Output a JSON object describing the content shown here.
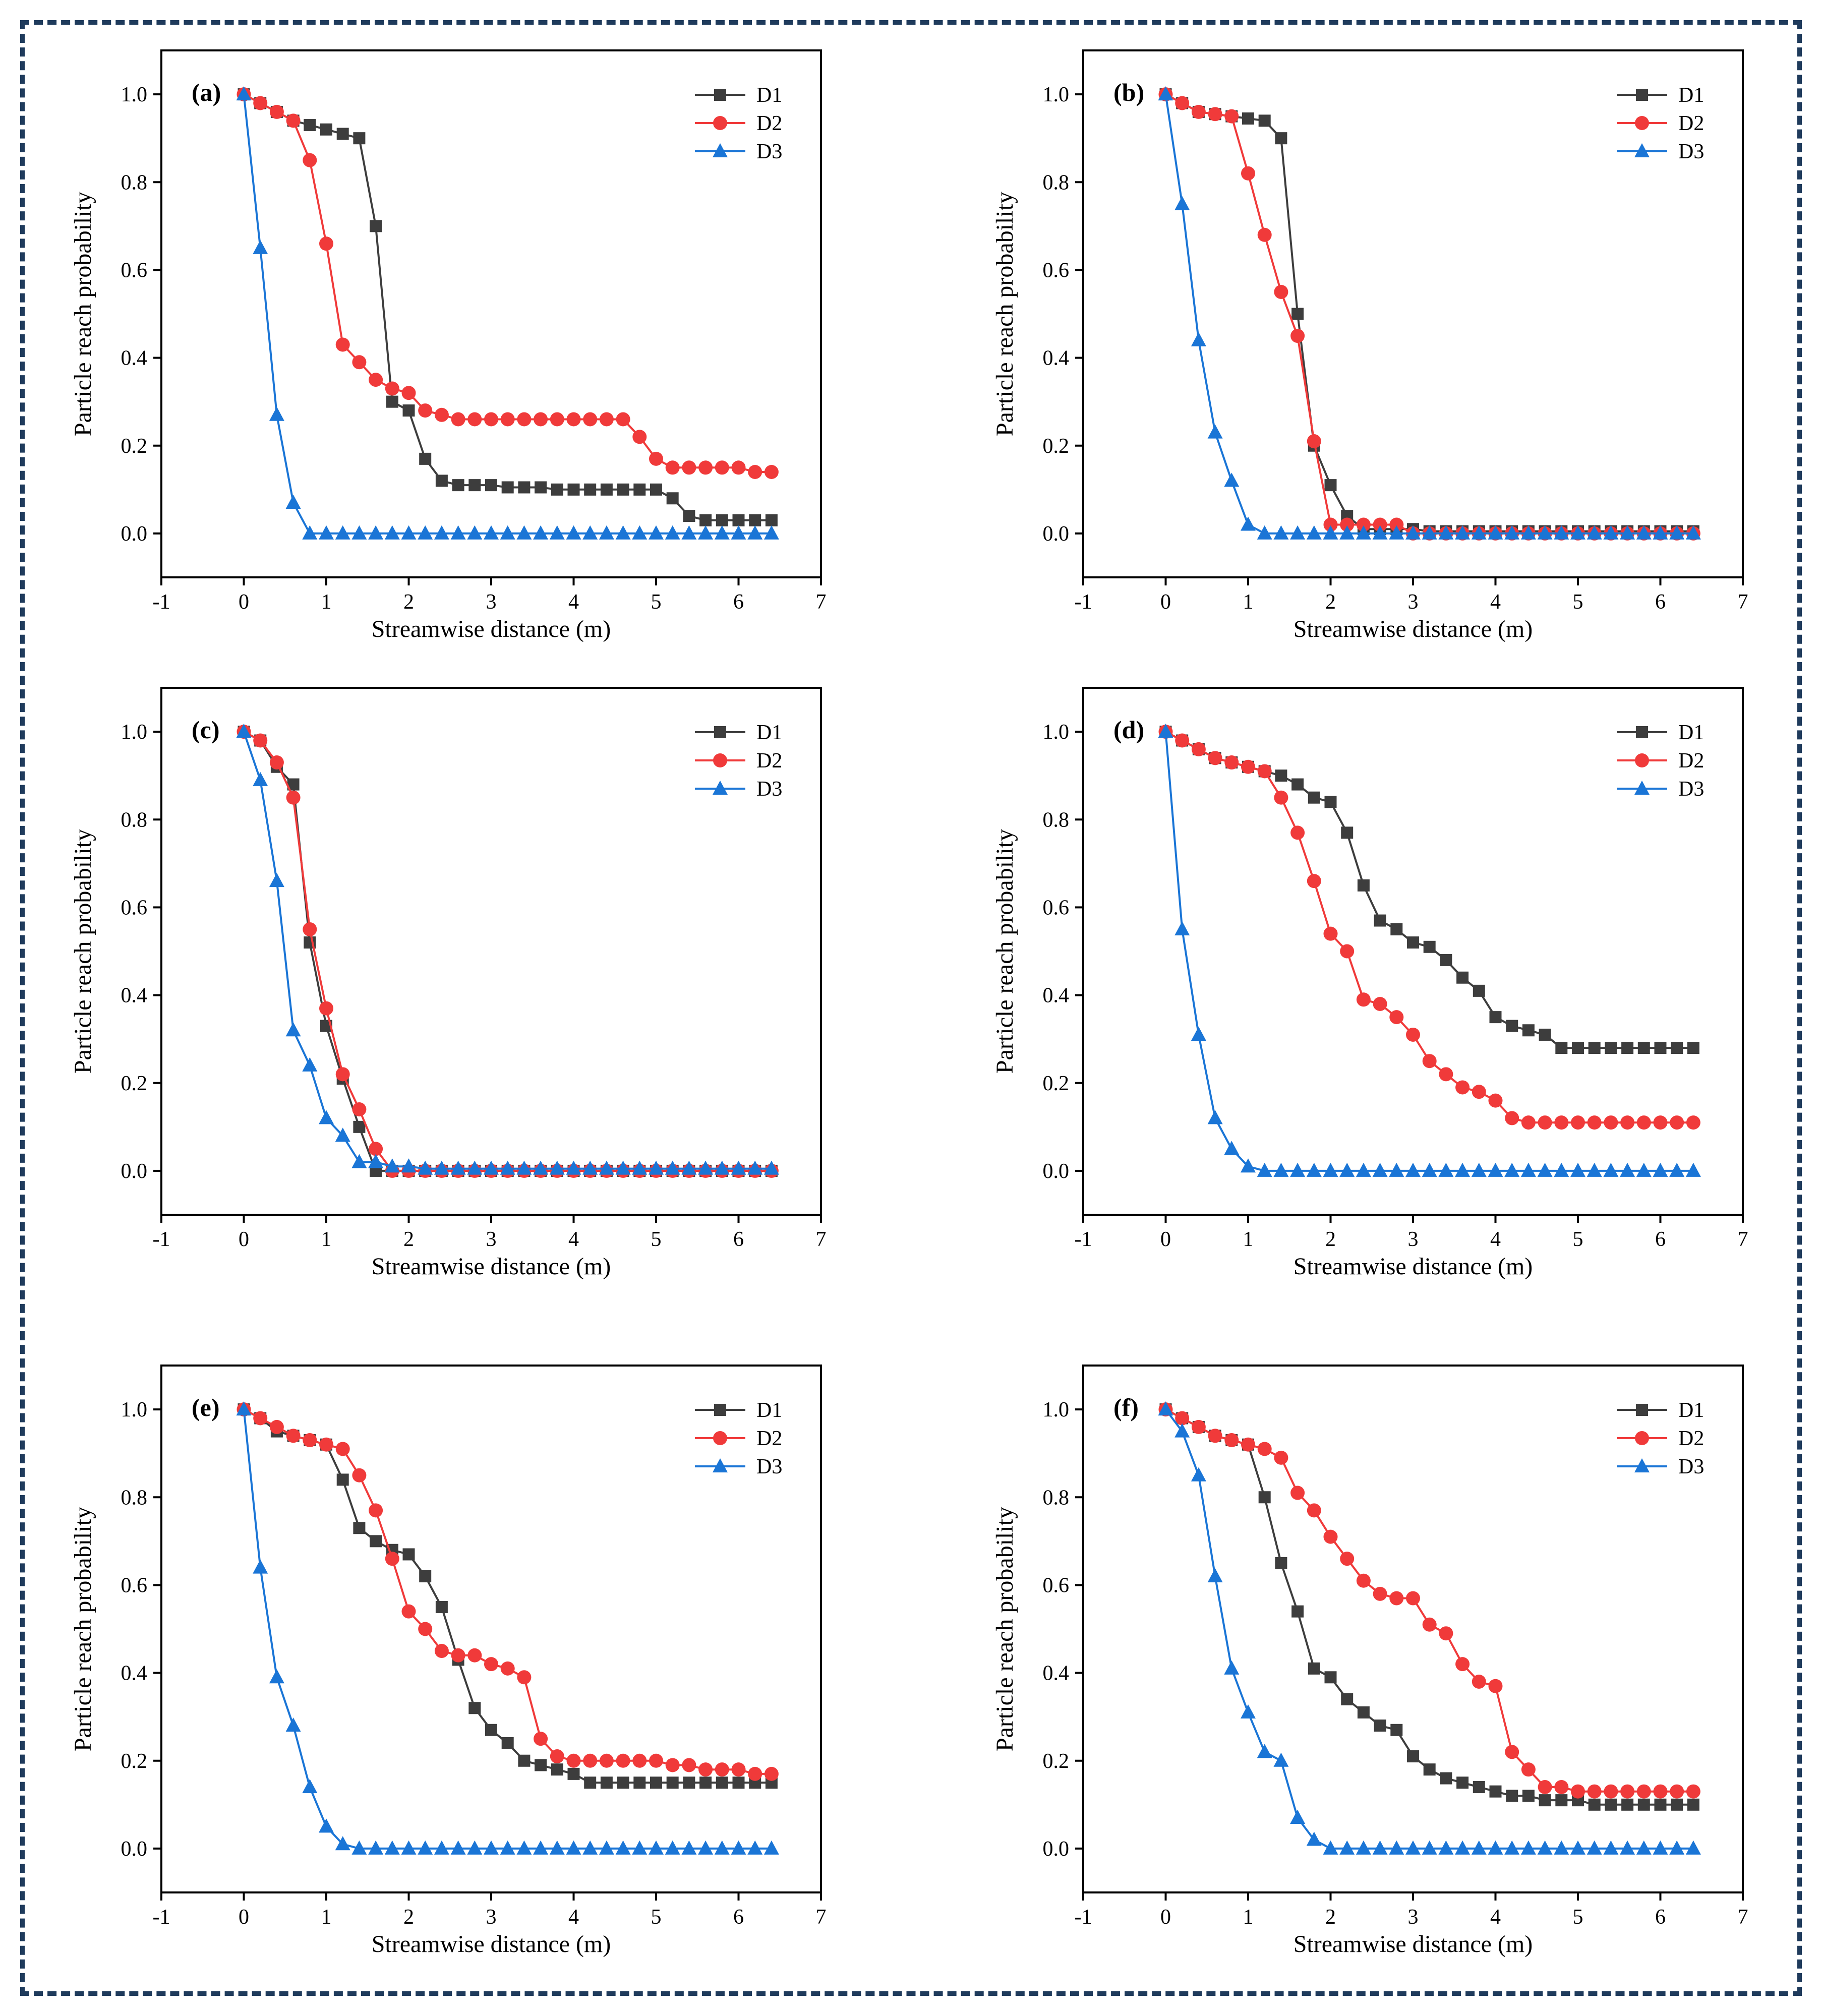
{
  "chart_data": [
    {
      "type": "line",
      "panel_label": "(a)",
      "xlabel": "Streamwise distance (m)",
      "ylabel": "Particle reach probability",
      "xlim": [
        -1,
        7
      ],
      "ylim": [
        -0.1,
        1.1
      ],
      "xticks": [
        "-1",
        "0",
        "1",
        "2",
        "3",
        "4",
        "5",
        "6",
        "7"
      ],
      "yticks": [
        "0.0",
        "0.2",
        "0.4",
        "0.6",
        "0.8",
        "1.0"
      ],
      "legend": "top-right",
      "x": [
        0,
        0.2,
        0.4,
        0.6,
        0.8,
        1.0,
        1.2,
        1.4,
        1.6,
        1.8,
        2.0,
        2.2,
        2.4,
        2.6,
        2.8,
        3.0,
        3.2,
        3.4,
        3.6,
        3.8,
        4.0,
        4.2,
        4.4,
        4.6,
        4.8,
        5.0,
        5.2,
        5.4,
        5.6,
        5.8,
        6.0,
        6.2,
        6.4
      ],
      "series": [
        {
          "name": "D1",
          "color": "#3d3d3d",
          "marker": "square",
          "values": [
            1.0,
            0.98,
            0.96,
            0.94,
            0.93,
            0.92,
            0.91,
            0.9,
            0.7,
            0.3,
            0.28,
            0.17,
            0.12,
            0.11,
            0.11,
            0.11,
            0.105,
            0.105,
            0.105,
            0.1,
            0.1,
            0.1,
            0.1,
            0.1,
            0.1,
            0.1,
            0.08,
            0.04,
            0.03,
            0.03,
            0.03,
            0.03,
            0.03
          ]
        },
        {
          "name": "D2",
          "color": "#f03a3a",
          "marker": "circle",
          "values": [
            1.0,
            0.98,
            0.96,
            0.94,
            0.85,
            0.66,
            0.43,
            0.39,
            0.35,
            0.33,
            0.32,
            0.28,
            0.27,
            0.26,
            0.26,
            0.26,
            0.26,
            0.26,
            0.26,
            0.26,
            0.26,
            0.26,
            0.26,
            0.26,
            0.22,
            0.17,
            0.15,
            0.15,
            0.15,
            0.15,
            0.15,
            0.14,
            0.14
          ]
        },
        {
          "name": "D3",
          "color": "#1a75d6",
          "marker": "triangle",
          "values": [
            1.0,
            0.65,
            0.27,
            0.07,
            0.0,
            0.0,
            0.0,
            0.0,
            0.0,
            0.0,
            0.0,
            0.0,
            0.0,
            0.0,
            0.0,
            0.0,
            0.0,
            0.0,
            0.0,
            0.0,
            0.0,
            0.0,
            0.0,
            0.0,
            0.0,
            0.0,
            0.0,
            0.0,
            0.0,
            0.0,
            0.0,
            0.0,
            0.0
          ]
        }
      ]
    },
    {
      "type": "line",
      "panel_label": "(b)",
      "xlabel": "Streamwise distance (m)",
      "ylabel": "Particle reach probability",
      "xlim": [
        -1,
        7
      ],
      "ylim": [
        -0.1,
        1.1
      ],
      "xticks": [
        "-1",
        "0",
        "1",
        "2",
        "3",
        "4",
        "5",
        "6",
        "7"
      ],
      "yticks": [
        "0.0",
        "0.2",
        "0.4",
        "0.6",
        "0.8",
        "1.0"
      ],
      "legend": "top-right",
      "x": [
        0,
        0.2,
        0.4,
        0.6,
        0.8,
        1.0,
        1.2,
        1.4,
        1.6,
        1.8,
        2.0,
        2.2,
        2.4,
        2.6,
        2.8,
        3.0,
        3.2,
        3.4,
        3.6,
        3.8,
        4.0,
        4.2,
        4.4,
        4.6,
        4.8,
        5.0,
        5.2,
        5.4,
        5.6,
        5.8,
        6.0,
        6.2,
        6.4
      ],
      "series": [
        {
          "name": "D1",
          "color": "#3d3d3d",
          "marker": "square",
          "values": [
            1.0,
            0.98,
            0.96,
            0.955,
            0.95,
            0.945,
            0.94,
            0.9,
            0.5,
            0.2,
            0.11,
            0.04,
            0.01,
            0.01,
            0.01,
            0.01,
            0.005,
            0.005,
            0.005,
            0.005,
            0.005,
            0.005,
            0.005,
            0.005,
            0.005,
            0.005,
            0.005,
            0.005,
            0.005,
            0.005,
            0.005,
            0.005,
            0.005
          ]
        },
        {
          "name": "D2",
          "color": "#f03a3a",
          "marker": "circle",
          "values": [
            1.0,
            0.98,
            0.96,
            0.955,
            0.95,
            0.82,
            0.68,
            0.55,
            0.45,
            0.21,
            0.02,
            0.02,
            0.02,
            0.02,
            0.02,
            0.0,
            0.0,
            0.0,
            0.0,
            0.0,
            0.0,
            0.0,
            0.0,
            0.0,
            0.0,
            0.0,
            0.0,
            0.0,
            0.0,
            0.0,
            0.0,
            0.0,
            0.0
          ]
        },
        {
          "name": "D3",
          "color": "#1a75d6",
          "marker": "triangle",
          "values": [
            1.0,
            0.75,
            0.44,
            0.23,
            0.12,
            0.02,
            0.0,
            0.0,
            0.0,
            0.0,
            0.0,
            0.0,
            0.0,
            0.0,
            0.0,
            0.0,
            0.0,
            0.0,
            0.0,
            0.0,
            0.0,
            0.0,
            0.0,
            0.0,
            0.0,
            0.0,
            0.0,
            0.0,
            0.0,
            0.0,
            0.0,
            0.0,
            0.0
          ]
        }
      ]
    },
    {
      "type": "line",
      "panel_label": "(c)",
      "xlabel": "Streamwise distance (m)",
      "ylabel": "Particle reach probability",
      "xlim": [
        -1,
        7
      ],
      "ylim": [
        -0.1,
        1.1
      ],
      "xticks": [
        "-1",
        "0",
        "1",
        "2",
        "3",
        "4",
        "5",
        "6",
        "7"
      ],
      "yticks": [
        "0.0",
        "0.2",
        "0.4",
        "0.6",
        "0.8",
        "1.0"
      ],
      "legend": "top-right",
      "x": [
        0,
        0.2,
        0.4,
        0.6,
        0.8,
        1.0,
        1.2,
        1.4,
        1.6,
        1.8,
        2.0,
        2.2,
        2.4,
        2.6,
        2.8,
        3.0,
        3.2,
        3.4,
        3.6,
        3.8,
        4.0,
        4.2,
        4.4,
        4.6,
        4.8,
        5.0,
        5.2,
        5.4,
        5.6,
        5.8,
        6.0,
        6.2,
        6.4
      ],
      "series": [
        {
          "name": "D1",
          "color": "#3d3d3d",
          "marker": "square",
          "values": [
            1.0,
            0.98,
            0.92,
            0.88,
            0.52,
            0.33,
            0.21,
            0.1,
            0.0,
            0.0,
            0.0,
            0.0,
            0.0,
            0.0,
            0.0,
            0.0,
            0.0,
            0.0,
            0.0,
            0.0,
            0.0,
            0.0,
            0.0,
            0.0,
            0.0,
            0.0,
            0.0,
            0.0,
            0.0,
            0.0,
            0.0,
            0.0,
            0.0
          ]
        },
        {
          "name": "D2",
          "color": "#f03a3a",
          "marker": "circle",
          "values": [
            1.0,
            0.98,
            0.93,
            0.85,
            0.55,
            0.37,
            0.22,
            0.14,
            0.05,
            0.0,
            0.0,
            0.0,
            0.0,
            0.0,
            0.0,
            0.0,
            0.0,
            0.0,
            0.0,
            0.0,
            0.0,
            0.0,
            0.0,
            0.0,
            0.0,
            0.0,
            0.0,
            0.0,
            0.0,
            0.0,
            0.0,
            0.0,
            0.0
          ]
        },
        {
          "name": "D3",
          "color": "#1a75d6",
          "marker": "triangle",
          "values": [
            1.0,
            0.89,
            0.66,
            0.32,
            0.24,
            0.12,
            0.08,
            0.02,
            0.02,
            0.01,
            0.01,
            0.005,
            0.005,
            0.005,
            0.005,
            0.005,
            0.005,
            0.005,
            0.005,
            0.005,
            0.005,
            0.005,
            0.005,
            0.005,
            0.005,
            0.005,
            0.005,
            0.005,
            0.005,
            0.005,
            0.005,
            0.005,
            0.005
          ]
        }
      ]
    },
    {
      "type": "line",
      "panel_label": "(d)",
      "xlabel": "Streamwise distance (m)",
      "ylabel": "Particle reach probability",
      "xlim": [
        -1,
        7
      ],
      "ylim": [
        -0.1,
        1.1
      ],
      "xticks": [
        "-1",
        "0",
        "1",
        "2",
        "3",
        "4",
        "5",
        "6",
        "7"
      ],
      "yticks": [
        "0.0",
        "0.2",
        "0.4",
        "0.6",
        "0.8",
        "1.0"
      ],
      "legend": "top-right",
      "x": [
        0,
        0.2,
        0.4,
        0.6,
        0.8,
        1.0,
        1.2,
        1.4,
        1.6,
        1.8,
        2.0,
        2.2,
        2.4,
        2.6,
        2.8,
        3.0,
        3.2,
        3.4,
        3.6,
        3.8,
        4.0,
        4.2,
        4.4,
        4.6,
        4.8,
        5.0,
        5.2,
        5.4,
        5.6,
        5.8,
        6.0,
        6.2,
        6.4
      ],
      "series": [
        {
          "name": "D1",
          "color": "#3d3d3d",
          "marker": "square",
          "values": [
            1.0,
            0.98,
            0.96,
            0.94,
            0.93,
            0.92,
            0.91,
            0.9,
            0.88,
            0.85,
            0.84,
            0.77,
            0.65,
            0.57,
            0.55,
            0.52,
            0.51,
            0.48,
            0.44,
            0.41,
            0.35,
            0.33,
            0.32,
            0.31,
            0.28,
            0.28,
            0.28,
            0.28,
            0.28,
            0.28,
            0.28,
            0.28,
            0.28
          ]
        },
        {
          "name": "D2",
          "color": "#f03a3a",
          "marker": "circle",
          "values": [
            1.0,
            0.98,
            0.96,
            0.94,
            0.93,
            0.92,
            0.91,
            0.85,
            0.77,
            0.66,
            0.54,
            0.5,
            0.39,
            0.38,
            0.35,
            0.31,
            0.25,
            0.22,
            0.19,
            0.18,
            0.16,
            0.12,
            0.11,
            0.11,
            0.11,
            0.11,
            0.11,
            0.11,
            0.11,
            0.11,
            0.11,
            0.11,
            0.11
          ]
        },
        {
          "name": "D3",
          "color": "#1a75d6",
          "marker": "triangle",
          "values": [
            1.0,
            0.55,
            0.31,
            0.12,
            0.05,
            0.01,
            0.0,
            0.0,
            0.0,
            0.0,
            0.0,
            0.0,
            0.0,
            0.0,
            0.0,
            0.0,
            0.0,
            0.0,
            0.0,
            0.0,
            0.0,
            0.0,
            0.0,
            0.0,
            0.0,
            0.0,
            0.0,
            0.0,
            0.0,
            0.0,
            0.0,
            0.0,
            0.0
          ]
        }
      ]
    },
    {
      "type": "line",
      "panel_label": "(e)",
      "xlabel": "Streamwise distance (m)",
      "ylabel": "Particle reach probability",
      "xlim": [
        -1,
        7
      ],
      "ylim": [
        -0.1,
        1.1
      ],
      "xticks": [
        "-1",
        "0",
        "1",
        "2",
        "3",
        "4",
        "5",
        "6",
        "7"
      ],
      "yticks": [
        "0.0",
        "0.2",
        "0.4",
        "0.6",
        "0.8",
        "1.0"
      ],
      "legend": "top-right",
      "x": [
        0,
        0.2,
        0.4,
        0.6,
        0.8,
        1.0,
        1.2,
        1.4,
        1.6,
        1.8,
        2.0,
        2.2,
        2.4,
        2.6,
        2.8,
        3.0,
        3.2,
        3.4,
        3.6,
        3.8,
        4.0,
        4.2,
        4.4,
        4.6,
        4.8,
        5.0,
        5.2,
        5.4,
        5.6,
        5.8,
        6.0,
        6.2,
        6.4
      ],
      "series": [
        {
          "name": "D1",
          "color": "#3d3d3d",
          "marker": "square",
          "values": [
            1.0,
            0.98,
            0.95,
            0.94,
            0.93,
            0.92,
            0.84,
            0.73,
            0.7,
            0.68,
            0.67,
            0.62,
            0.55,
            0.43,
            0.32,
            0.27,
            0.24,
            0.2,
            0.19,
            0.18,
            0.17,
            0.15,
            0.15,
            0.15,
            0.15,
            0.15,
            0.15,
            0.15,
            0.15,
            0.15,
            0.15,
            0.15,
            0.15
          ]
        },
        {
          "name": "D2",
          "color": "#f03a3a",
          "marker": "circle",
          "values": [
            1.0,
            0.98,
            0.96,
            0.94,
            0.93,
            0.92,
            0.91,
            0.85,
            0.77,
            0.66,
            0.54,
            0.5,
            0.45,
            0.44,
            0.44,
            0.42,
            0.41,
            0.39,
            0.25,
            0.21,
            0.2,
            0.2,
            0.2,
            0.2,
            0.2,
            0.2,
            0.19,
            0.19,
            0.18,
            0.18,
            0.18,
            0.17,
            0.17
          ]
        },
        {
          "name": "D3",
          "color": "#1a75d6",
          "marker": "triangle",
          "values": [
            1.0,
            0.64,
            0.39,
            0.28,
            0.14,
            0.05,
            0.01,
            0.0,
            0.0,
            0.0,
            0.0,
            0.0,
            0.0,
            0.0,
            0.0,
            0.0,
            0.0,
            0.0,
            0.0,
            0.0,
            0.0,
            0.0,
            0.0,
            0.0,
            0.0,
            0.0,
            0.0,
            0.0,
            0.0,
            0.0,
            0.0,
            0.0,
            0.0
          ]
        }
      ]
    },
    {
      "type": "line",
      "panel_label": "(f)",
      "xlabel": "Streamwise distance (m)",
      "ylabel": "Particle reach probability",
      "xlim": [
        -1,
        7
      ],
      "ylim": [
        -0.1,
        1.1
      ],
      "xticks": [
        "-1",
        "0",
        "1",
        "2",
        "3",
        "4",
        "5",
        "6",
        "7"
      ],
      "yticks": [
        "0.0",
        "0.2",
        "0.4",
        "0.6",
        "0.8",
        "1.0"
      ],
      "legend": "top-right",
      "x": [
        0,
        0.2,
        0.4,
        0.6,
        0.8,
        1.0,
        1.2,
        1.4,
        1.6,
        1.8,
        2.0,
        2.2,
        2.4,
        2.6,
        2.8,
        3.0,
        3.2,
        3.4,
        3.6,
        3.8,
        4.0,
        4.2,
        4.4,
        4.6,
        4.8,
        5.0,
        5.2,
        5.4,
        5.6,
        5.8,
        6.0,
        6.2,
        6.4
      ],
      "series": [
        {
          "name": "D1",
          "color": "#3d3d3d",
          "marker": "square",
          "values": [
            1.0,
            0.98,
            0.96,
            0.94,
            0.93,
            0.92,
            0.8,
            0.65,
            0.54,
            0.41,
            0.39,
            0.34,
            0.31,
            0.28,
            0.27,
            0.21,
            0.18,
            0.16,
            0.15,
            0.14,
            0.13,
            0.12,
            0.12,
            0.11,
            0.11,
            0.11,
            0.1,
            0.1,
            0.1,
            0.1,
            0.1,
            0.1,
            0.1
          ]
        },
        {
          "name": "D2",
          "color": "#f03a3a",
          "marker": "circle",
          "values": [
            1.0,
            0.98,
            0.96,
            0.94,
            0.93,
            0.92,
            0.91,
            0.89,
            0.81,
            0.77,
            0.71,
            0.66,
            0.61,
            0.58,
            0.57,
            0.57,
            0.51,
            0.49,
            0.42,
            0.38,
            0.37,
            0.22,
            0.18,
            0.14,
            0.14,
            0.13,
            0.13,
            0.13,
            0.13,
            0.13,
            0.13,
            0.13,
            0.13
          ]
        },
        {
          "name": "D3",
          "color": "#1a75d6",
          "marker": "triangle",
          "values": [
            1.0,
            0.95,
            0.85,
            0.62,
            0.41,
            0.31,
            0.22,
            0.2,
            0.07,
            0.02,
            0.0,
            0.0,
            0.0,
            0.0,
            0.0,
            0.0,
            0.0,
            0.0,
            0.0,
            0.0,
            0.0,
            0.0,
            0.0,
            0.0,
            0.0,
            0.0,
            0.0,
            0.0,
            0.0,
            0.0,
            0.0,
            0.0,
            0.0
          ]
        }
      ]
    }
  ]
}
